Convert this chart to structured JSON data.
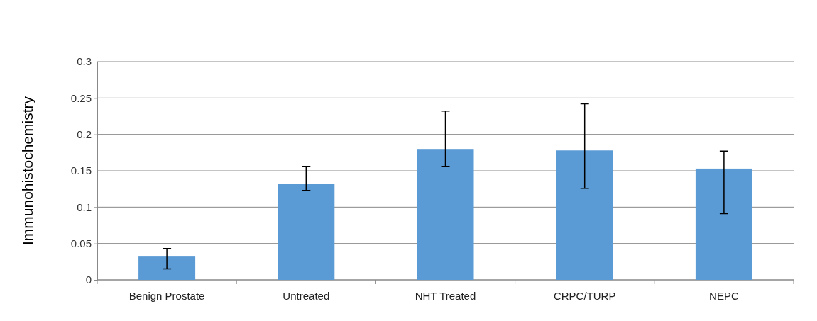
{
  "chart_data": {
    "type": "bar",
    "ylabel": "Immunohistochemistry",
    "categories": [
      "Benign Prostate",
      "Untreated",
      "NHT Treated",
      "CRPC/TURP",
      "NEPC"
    ],
    "values": [
      0.033,
      0.132,
      0.18,
      0.178,
      0.153
    ],
    "errors": [
      [
        0.015,
        0.043
      ],
      [
        0.123,
        0.156
      ],
      [
        0.156,
        0.232
      ],
      [
        0.126,
        0.242
      ],
      [
        0.091,
        0.177
      ]
    ],
    "color": "#5b9bd5",
    "ylim": [
      0,
      0.3
    ],
    "yticks": [
      0,
      0.05,
      0.1,
      0.15,
      0.2,
      0.25,
      0.3
    ],
    "grid": "y"
  }
}
